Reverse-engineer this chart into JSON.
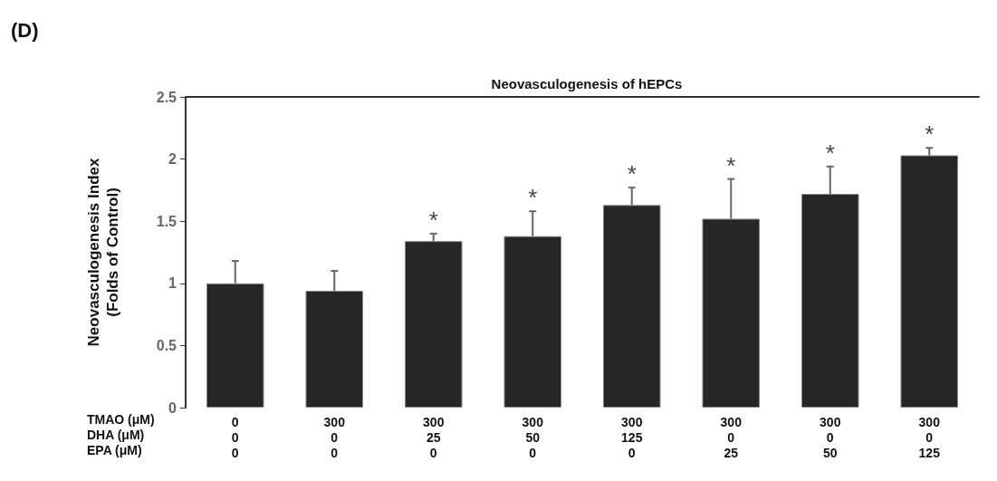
{
  "chart_data": {
    "type": "bar",
    "title": "Neovasculogenesis of hEPCs",
    "ylabel": "Neovasculogenesis Index\n(Folds of Control)",
    "categories": [
      "0\n0\n0",
      "300\n0\n0",
      "300\n25\n0",
      "300\n50\n0",
      "300\n125\n0",
      "300\n0\n25",
      "300\n0\n50",
      "300\n0\n125"
    ],
    "values": [
      1.0,
      0.94,
      1.34,
      1.38,
      1.63,
      1.52,
      1.72,
      2.03
    ],
    "errors": [
      [
        1.0,
        1.18
      ],
      [
        0.94,
        1.1
      ],
      [
        1.34,
        1.4
      ],
      [
        1.38,
        1.58
      ],
      [
        1.63,
        1.77
      ],
      [
        1.52,
        1.84
      ],
      [
        1.72,
        1.94
      ],
      [
        2.03,
        2.09
      ]
    ],
    "value_labels": [
      null,
      null,
      "*",
      "*",
      "*",
      "*",
      "*",
      "*"
    ],
    "color": "#262626",
    "ylim": [
      0,
      2.5
    ],
    "yticks": [
      0,
      0.5,
      1,
      1.5,
      2,
      2.5
    ],
    "grid": false,
    "annotations": [
      "(D)",
      "TMAO (μM)",
      "DHA (μM)",
      "EPA (μM)"
    ]
  }
}
